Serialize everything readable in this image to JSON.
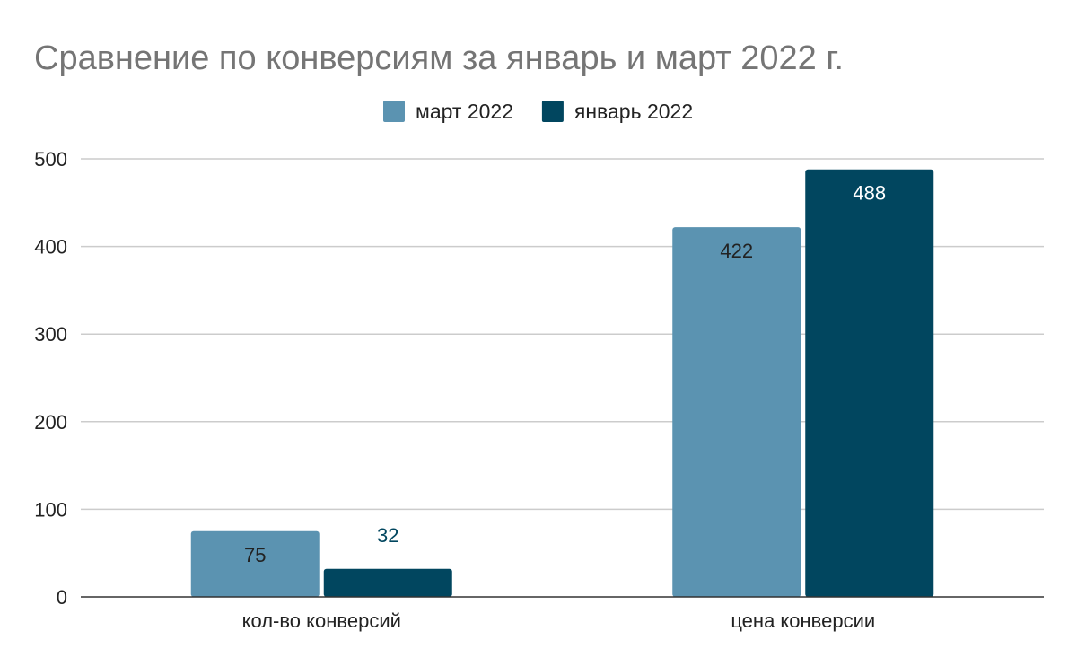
{
  "chart_data": {
    "type": "bar",
    "title": "Сравнение по конверсиям за январь и март 2022 г.",
    "categories": [
      "кол-во конверсий",
      "цена конверсии"
    ],
    "series": [
      {
        "name": "март 2022",
        "values": [
          75,
          422
        ],
        "color": "#5b93b1"
      },
      {
        "name": "январь 2022",
        "values": [
          32,
          488
        ],
        "color": "#01465f"
      }
    ],
    "ylim": [
      0,
      500
    ],
    "yticks": [
      0,
      100,
      200,
      300,
      400,
      500
    ],
    "grid": true,
    "legend_position": "top-center",
    "colors": {
      "title": "#757575",
      "text": "#222222",
      "grid": "#cccccc",
      "axis": "#333333"
    }
  }
}
